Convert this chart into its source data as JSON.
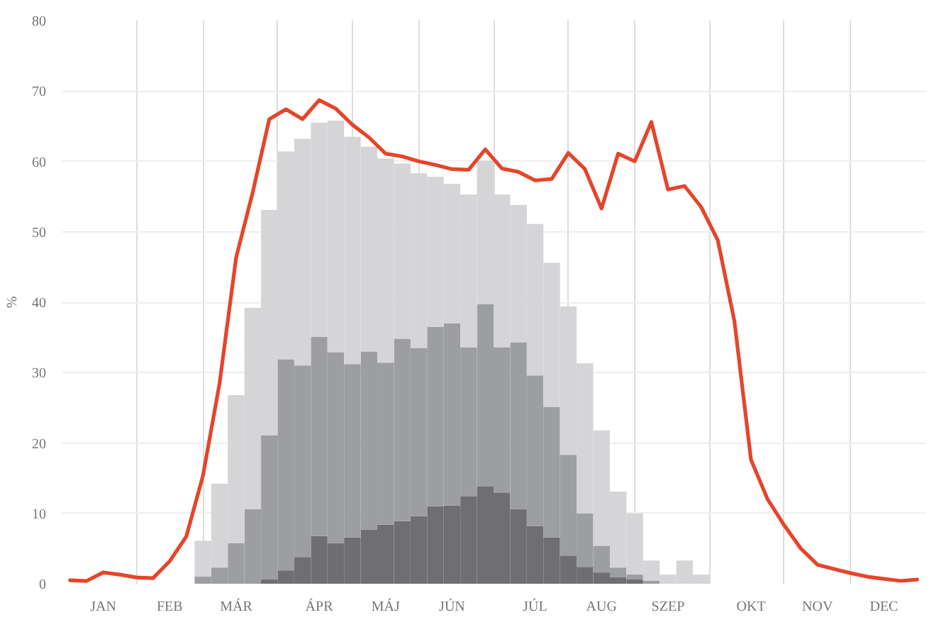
{
  "chart_data": {
    "type": "bar",
    "stacked": true,
    "ylabel": "%",
    "categories": [
      null,
      null,
      "JAN",
      null,
      null,
      null,
      "FEB",
      null,
      null,
      null,
      "MÁR",
      null,
      null,
      null,
      null,
      "ÁPR",
      null,
      null,
      null,
      "MÁJ",
      null,
      null,
      null,
      "JÚN",
      null,
      null,
      null,
      null,
      "JÚL",
      null,
      null,
      null,
      "AUG",
      null,
      null,
      null,
      "SZEP",
      null,
      null,
      null,
      null,
      "OKT",
      null,
      null,
      null,
      "NOV",
      null,
      null,
      null,
      "DEC",
      null,
      null
    ],
    "series": [
      {
        "color": "#6f6f72",
        "values": [
          null,
          null,
          null,
          null,
          null,
          null,
          null,
          null,
          null,
          null,
          null,
          null,
          0.6,
          1.9,
          3.8,
          6.8,
          5.8,
          6.6,
          7.7,
          8.4,
          8.9,
          9.6,
          11.0,
          11.1,
          12.4,
          13.8,
          12.9,
          10.6,
          8.2,
          6.6,
          4.0,
          2.4,
          1.6,
          0.9,
          0.6,
          null,
          null,
          null,
          null,
          null,
          null,
          null,
          null,
          null,
          null,
          null,
          null,
          null,
          null,
          null,
          null,
          null
        ]
      },
      {
        "color": "#9d9ea1",
        "values": [
          null,
          null,
          null,
          null,
          null,
          null,
          null,
          null,
          1.0,
          2.3,
          5.8,
          10.6,
          20.5,
          30.0,
          27.2,
          28.3,
          27.1,
          24.6,
          25.3,
          23.0,
          25.9,
          23.9,
          25.5,
          25.9,
          21.2,
          25.9,
          20.7,
          23.7,
          21.4,
          18.5,
          14.3,
          7.6,
          3.8,
          1.4,
          0.7,
          0.4,
          null,
          null,
          null,
          null,
          null,
          null,
          null,
          null,
          null,
          null,
          null,
          null,
          null,
          null,
          null,
          null
        ]
      },
      {
        "color": "#d5d5d7",
        "values": [
          null,
          null,
          null,
          null,
          null,
          null,
          null,
          null,
          5.1,
          11.9,
          21.0,
          28.6,
          32.0,
          29.5,
          32.2,
          30.4,
          32.9,
          32.3,
          29.1,
          29.0,
          24.9,
          24.8,
          21.3,
          19.8,
          21.7,
          20.4,
          21.7,
          19.5,
          21.5,
          20.5,
          21.1,
          21.3,
          16.4,
          10.8,
          8.7,
          2.9,
          1.3,
          3.3,
          1.3,
          null,
          null,
          null,
          null,
          null,
          null,
          null,
          null,
          null,
          null,
          null,
          null,
          null
        ]
      },
      {
        "type": "line",
        "color": "#e5452b",
        "values": [
          0.5,
          0.4,
          1.6,
          1.3,
          0.9,
          0.8,
          3.2,
          6.7,
          15.3,
          28.4,
          46.3,
          55.6,
          66.0,
          67.4,
          66.0,
          68.7,
          67.5,
          65.2,
          63.4,
          61.1,
          60.7,
          60.0,
          59.5,
          58.9,
          58.8,
          61.7,
          59.0,
          58.5,
          57.3,
          57.5,
          61.2,
          58.9,
          53.3,
          61.1,
          60.0,
          65.6,
          56.0,
          56.5,
          53.5,
          48.8,
          37.3,
          17.6,
          12.0,
          8.3,
          5.0,
          2.7,
          2.1,
          1.5,
          1.0,
          0.7,
          0.4,
          0.6
        ]
      }
    ],
    "ylim": [
      0,
      80
    ],
    "yticks": [
      0,
      10,
      20,
      30,
      40,
      50,
      60,
      70,
      80
    ],
    "grid": true,
    "line_style": "solid",
    "marker": "none"
  }
}
